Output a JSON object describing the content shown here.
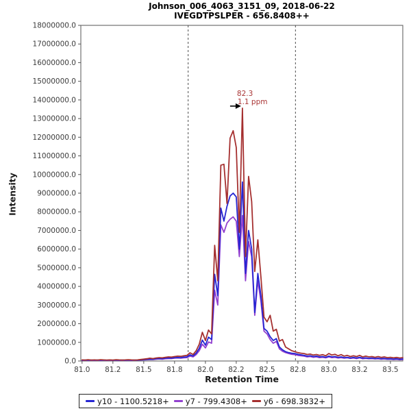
{
  "window": {
    "title_line1": "Johnson_006_4063_3151_09, 2018-06-22",
    "title_line2": "IVEGDTPSLPER - 656.8408++"
  },
  "axes": {
    "x": {
      "title": "Retention Time",
      "min": 80.99,
      "max": 83.6,
      "tick_values": [
        81.0,
        81.25,
        81.5,
        81.75,
        82.0,
        82.25,
        82.5,
        82.75,
        83.0,
        83.25,
        83.5
      ],
      "tick_labels": [
        "81.0",
        "81.2",
        "81.5",
        "81.8",
        "82.0",
        "82.2",
        "82.5",
        "82.8",
        "83.0",
        "83.2",
        "83.5"
      ]
    },
    "y": {
      "title": "Intensity",
      "min": 0,
      "max": 18000000,
      "tick_step": 1000000,
      "tick_labels": [
        "0.0",
        "1000000.0",
        "2000000.0",
        "3000000.0",
        "4000000.0",
        "5000000.0",
        "6000000.0",
        "7000000.0",
        "8000000.0",
        "9000000.0",
        "10000000.0",
        "11000000.0",
        "12000000.0",
        "13000000.0",
        "14000000.0",
        "15000000.0",
        "16000000.0",
        "17000000.0",
        "18000000.0"
      ]
    }
  },
  "chart_data": {
    "type": "line",
    "title": "Johnson_006_4063_3151_09, 2018-06-22 / IVEGDTPSLPER - 656.8408++",
    "xlabel": "Retention Time",
    "ylabel": "Intensity",
    "xlim": [
      80.99,
      83.6
    ],
    "ylim": [
      0,
      18000000
    ],
    "grid": false,
    "legend_position": "bottom",
    "x_start": 81.0,
    "x_step": 0.025,
    "integration_boundaries": [
      81.86,
      82.73
    ],
    "annotation": {
      "rt_label": "82.3",
      "ppm_label": "1.1 ppm",
      "x": 82.3,
      "y": 13560000,
      "color": "#a93434"
    },
    "series": [
      {
        "id": "y10",
        "name": "y10 - 1100.5218+",
        "color": "#2525d2",
        "values": [
          40000,
          50000,
          40000,
          50000,
          40000,
          50000,
          40000,
          50000,
          40000,
          50000,
          40000,
          50000,
          40000,
          50000,
          40000,
          50000,
          40000,
          50000,
          40000,
          60000,
          70000,
          90000,
          100000,
          90000,
          120000,
          130000,
          120000,
          150000,
          160000,
          150000,
          180000,
          190000,
          180000,
          210000,
          220000,
          330000,
          270000,
          420000,
          680000,
          1120000,
          850000,
          1280000,
          1150000,
          4650000,
          3500000,
          8200000,
          7500000,
          8300000,
          8850000,
          9000000,
          8800000,
          6000000,
          9600000,
          4700000,
          7000000,
          6000000,
          2600000,
          4700000,
          3500000,
          1750000,
          1600000,
          1300000,
          1100000,
          1200000,
          750000,
          600000,
          500000,
          450000,
          420000,
          400000,
          360000,
          330000,
          300000,
          260000,
          280000,
          240000,
          260000,
          220000,
          240000,
          200000,
          260000,
          220000,
          240000,
          190000,
          220000,
          180000,
          200000,
          160000,
          190000,
          160000,
          200000,
          150000,
          170000,
          140000,
          160000,
          130000,
          150000,
          120000,
          140000,
          110000,
          120000,
          100000,
          120000,
          90000,
          110000
        ]
      },
      {
        "id": "y7",
        "name": "y7 - 799.4308+",
        "color": "#9240cf",
        "values": [
          30000,
          40000,
          30000,
          40000,
          30000,
          40000,
          30000,
          40000,
          30000,
          40000,
          30000,
          40000,
          30000,
          40000,
          30000,
          40000,
          30000,
          40000,
          40000,
          50000,
          60000,
          70000,
          80000,
          80000,
          100000,
          110000,
          100000,
          120000,
          130000,
          130000,
          150000,
          160000,
          150000,
          170000,
          180000,
          260000,
          220000,
          340000,
          550000,
          900000,
          700000,
          1020000,
          950000,
          3800000,
          3000000,
          7300000,
          6900000,
          7400000,
          7600000,
          7730000,
          7500000,
          5600000,
          7800000,
          4300000,
          6400000,
          5600000,
          2450000,
          4300000,
          3200000,
          1600000,
          1450000,
          1150000,
          950000,
          1050000,
          650000,
          520000,
          450000,
          400000,
          360000,
          340000,
          300000,
          280000,
          260000,
          220000,
          240000,
          200000,
          220000,
          180000,
          200000,
          170000,
          220000,
          180000,
          200000,
          160000,
          180000,
          150000,
          170000,
          140000,
          160000,
          130000,
          170000,
          120000,
          140000,
          120000,
          130000,
          110000,
          120000,
          100000,
          110000,
          90000,
          100000,
          80000,
          90000,
          70000,
          80000
        ]
      },
      {
        "id": "y6",
        "name": "y6 - 698.3832+",
        "color": "#a52f2f",
        "values": [
          60000,
          50000,
          70000,
          50000,
          60000,
          50000,
          70000,
          60000,
          50000,
          60000,
          50000,
          70000,
          60000,
          50000,
          60000,
          70000,
          60000,
          50000,
          60000,
          80000,
          100000,
          120000,
          150000,
          130000,
          160000,
          180000,
          170000,
          200000,
          220000,
          210000,
          240000,
          260000,
          250000,
          280000,
          300000,
          440000,
          350000,
          550000,
          900000,
          1540000,
          1100000,
          1660000,
          1450000,
          6200000,
          4300000,
          10500000,
          10550000,
          8450000,
          11950000,
          12350000,
          11450000,
          6900000,
          13560000,
          5600000,
          9900000,
          8550000,
          4800000,
          6500000,
          4500000,
          2350000,
          2100000,
          2450000,
          1600000,
          1700000,
          1070000,
          1150000,
          750000,
          650000,
          550000,
          500000,
          450000,
          420000,
          400000,
          350000,
          370000,
          320000,
          350000,
          300000,
          340000,
          280000,
          400000,
          320000,
          360000,
          280000,
          340000,
          260000,
          300000,
          240000,
          280000,
          240000,
          300000,
          220000,
          260000,
          220000,
          240000,
          200000,
          240000,
          190000,
          220000,
          180000,
          200000,
          170000,
          190000,
          160000,
          180000
        ]
      }
    ]
  },
  "legend": {
    "items": [
      {
        "label": "y10 - 1100.5218+",
        "color": "#2525d2"
      },
      {
        "label": "y7 - 799.4308+",
        "color": "#9240cf"
      },
      {
        "label": "y6 - 698.3832+",
        "color": "#a52f2f"
      }
    ]
  }
}
